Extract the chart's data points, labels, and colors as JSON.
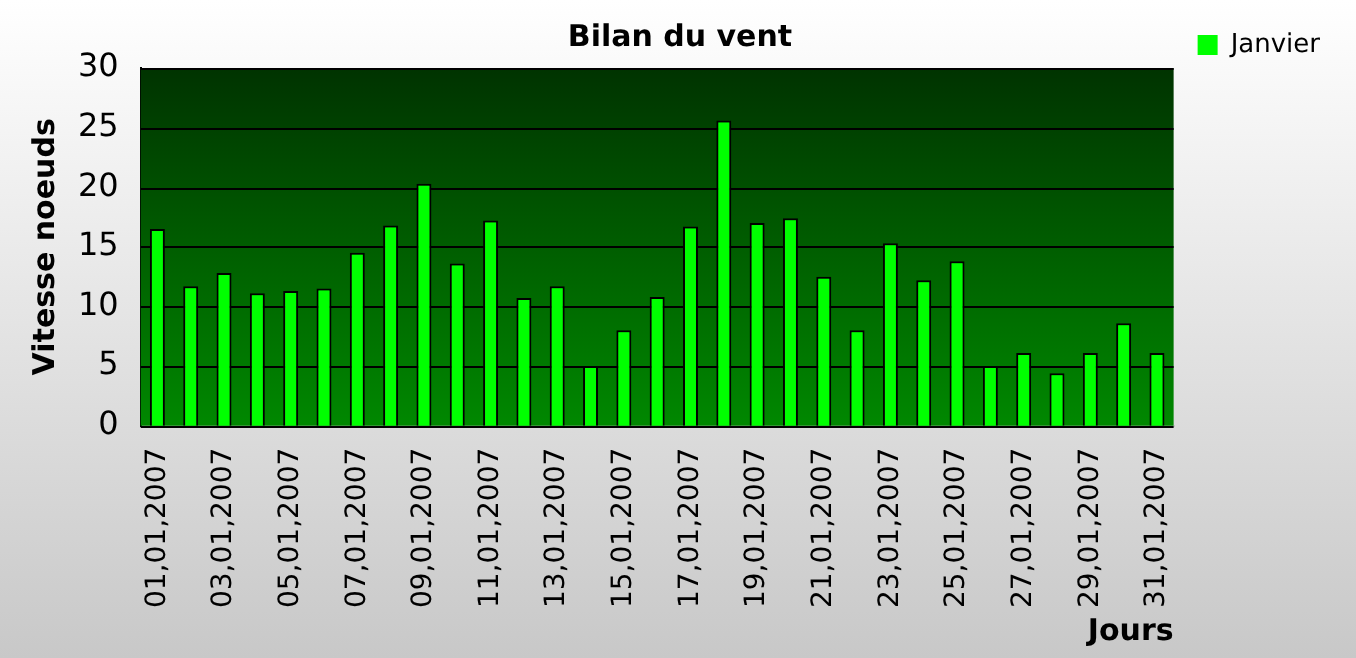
{
  "chart_data": {
    "type": "bar",
    "title": "Bilan du vent",
    "xlabel": "Jours",
    "ylabel": "Vitesse noeuds",
    "categories": [
      "01,01,2007",
      null,
      "03,01,2007",
      null,
      "05,01,2007",
      null,
      "07,01,2007",
      null,
      "09,01,2007",
      null,
      "11,01,2007",
      null,
      "13,01,2007",
      null,
      "15,01,2007",
      null,
      "17,01,2007",
      null,
      "19,01,2007",
      null,
      "21,01,2007",
      null,
      "23,01,2007",
      null,
      "25,01,2007",
      null,
      "27,01,2007",
      null,
      "29,01,2007",
      null,
      "31,01,2007"
    ],
    "series": [
      {
        "name": "Janvier",
        "color": "#00ff00",
        "values": [
          16.5,
          11.7,
          12.8,
          11.1,
          11.3,
          11.5,
          14.5,
          16.8,
          20.3,
          13.6,
          17.2,
          10.7,
          11.7,
          5.0,
          8.0,
          10.8,
          16.7,
          25.6,
          17.0,
          17.4,
          12.5,
          8.0,
          15.3,
          12.2,
          13.8,
          5.0,
          6.1,
          4.4,
          6.1,
          8.6,
          6.1
        ]
      }
    ],
    "ylim": [
      0,
      30
    ],
    "yticks": [
      0,
      5,
      10,
      15,
      20,
      25,
      30
    ],
    "grid": "y",
    "legend": "top right"
  }
}
